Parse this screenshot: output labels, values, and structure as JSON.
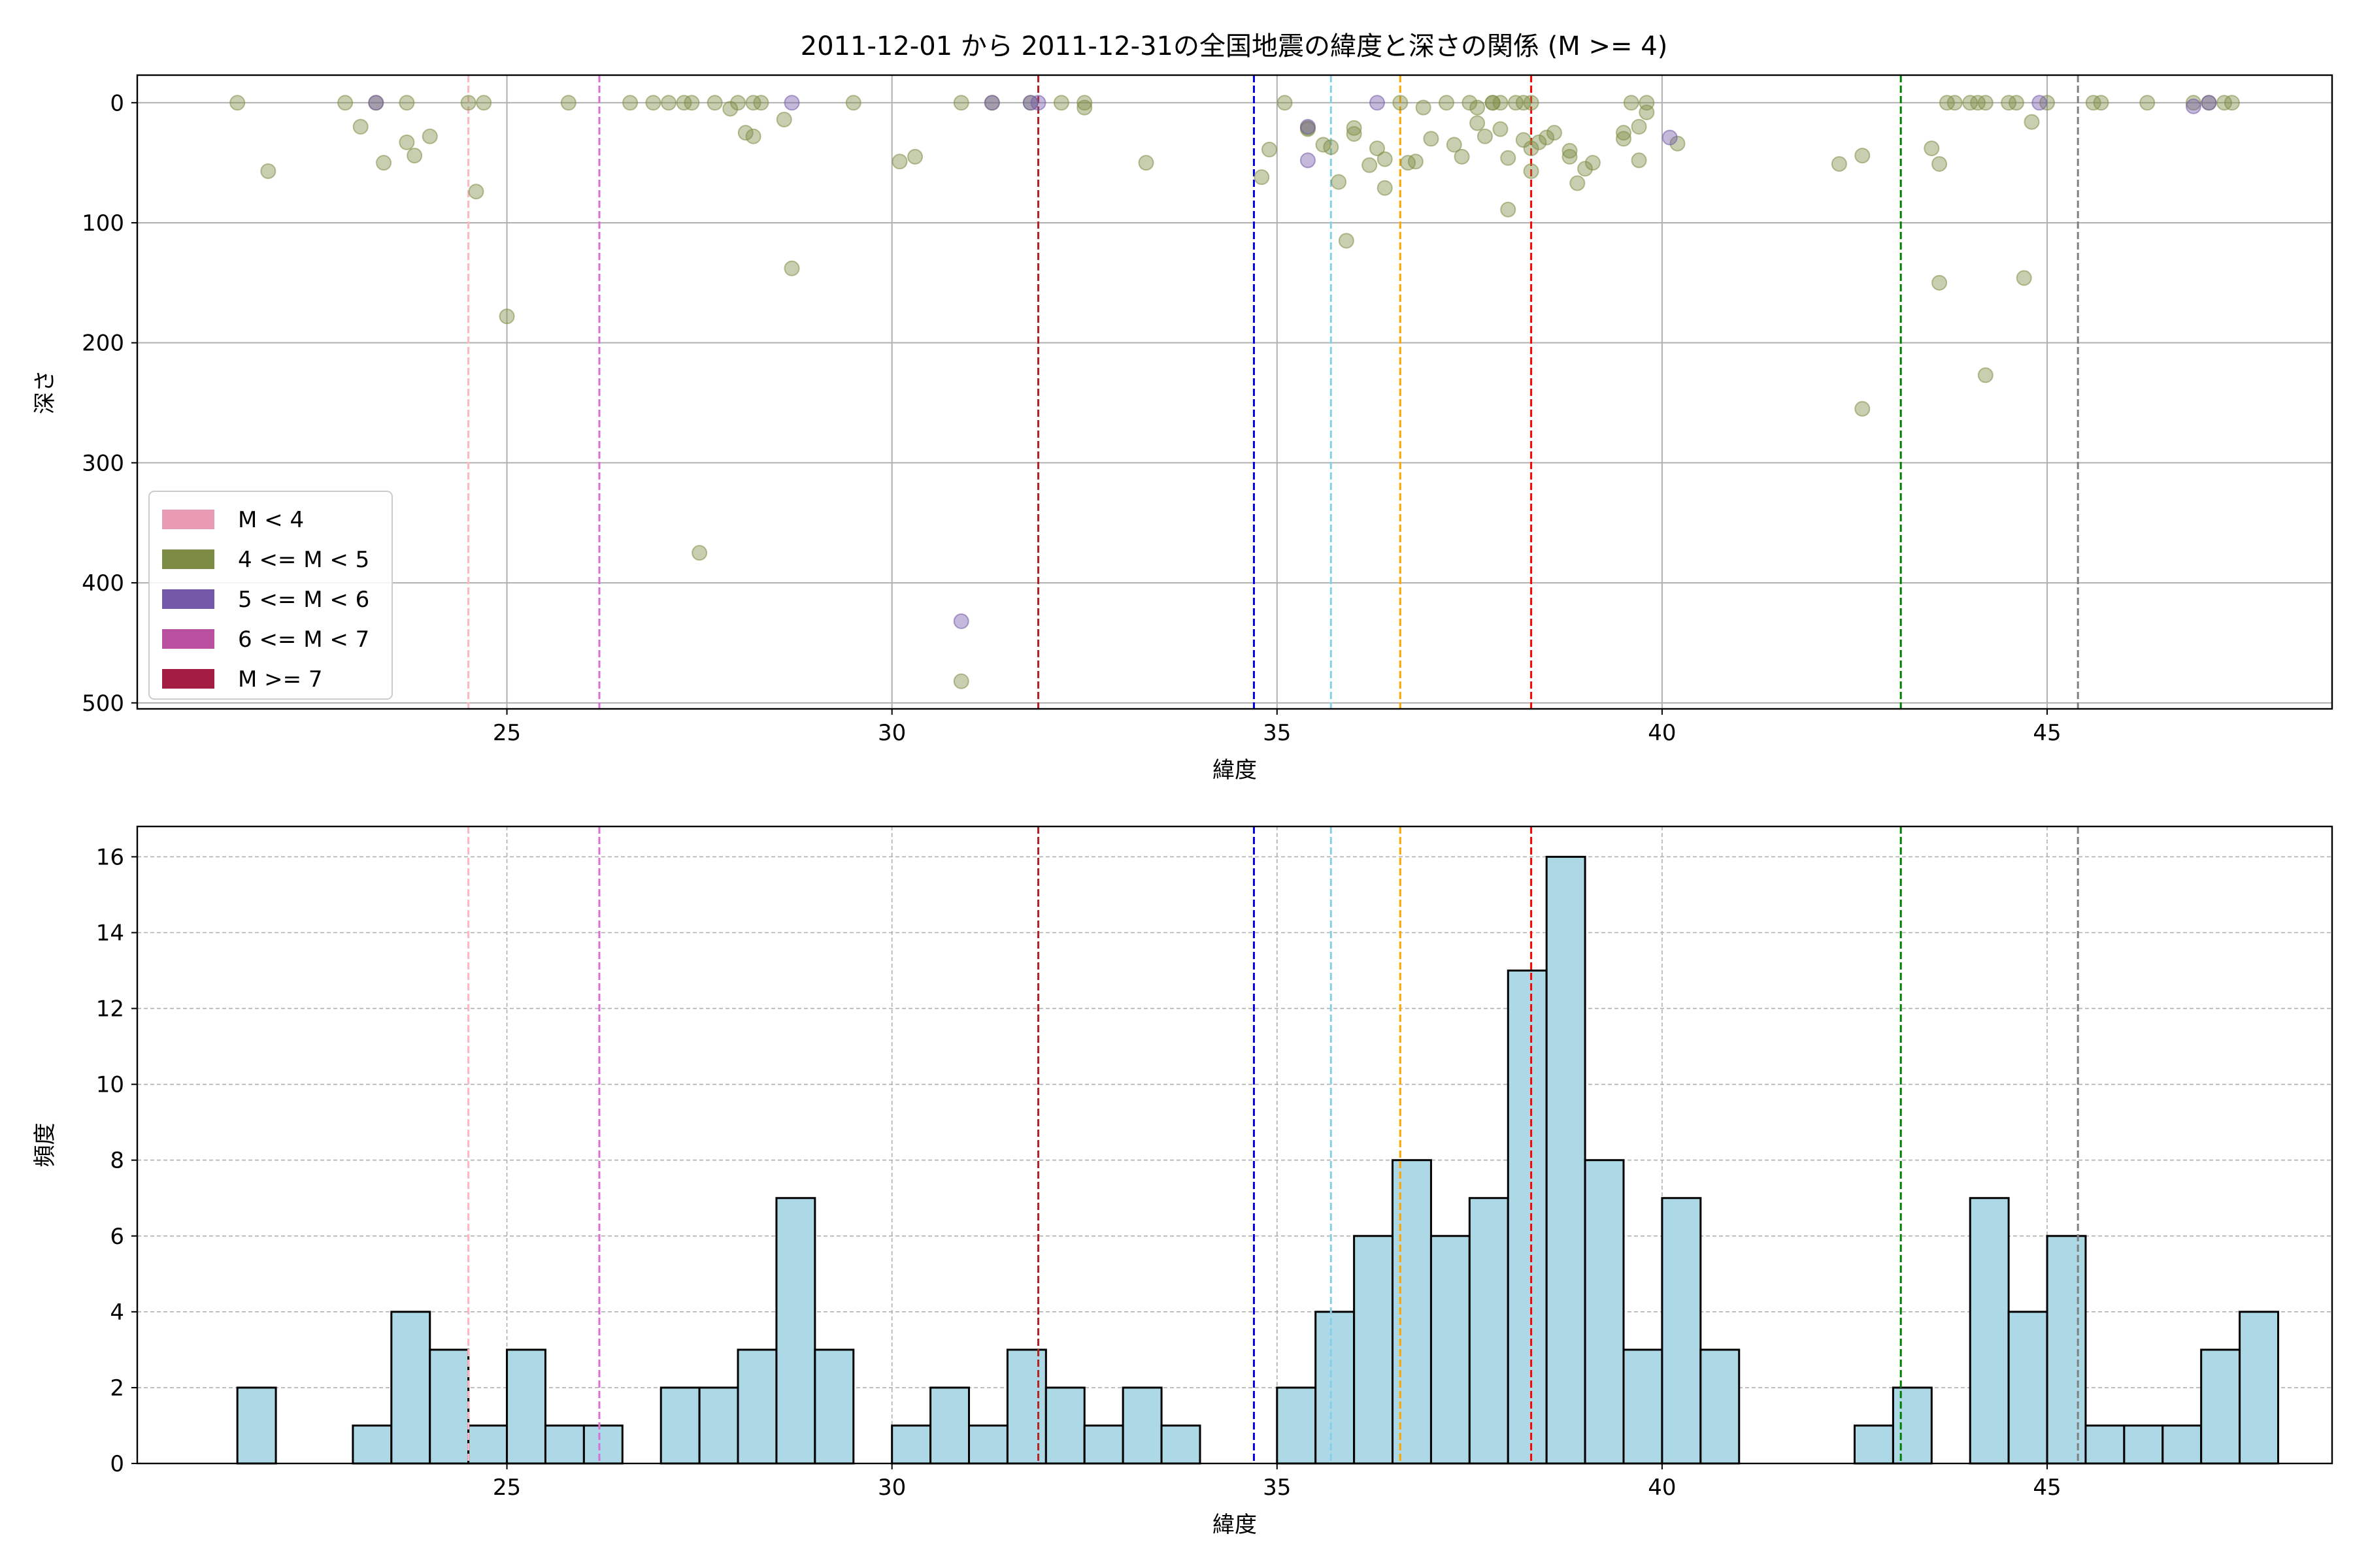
{
  "figure": {
    "title": "2011-12-01 から 2011-12-31の全国地震の緯度と深さの関係 (M >= 4)"
  },
  "chart_data": [
    {
      "type": "scatter",
      "xlabel": "緯度",
      "ylabel": "深さ",
      "xlim": [
        20.2,
        48.7
      ],
      "ylim": [
        505,
        -23
      ],
      "y_inverted": true,
      "xticks": [
        25,
        30,
        35,
        40,
        45
      ],
      "yticks": [
        0,
        100,
        200,
        300,
        400,
        500
      ],
      "grid": true,
      "legend_position": "lower-left",
      "legend": [
        {
          "label": "M < 4",
          "color": "#e89ab3"
        },
        {
          "label": "4 <= M < 5",
          "color": "#7d8c44"
        },
        {
          "label": "5 <= M < 6",
          "color": "#7358a8"
        },
        {
          "label": "6 <= M < 7",
          "color": "#b8509f"
        },
        {
          "label": "M >= 7",
          "color": "#a21c44"
        }
      ],
      "vlines": [
        {
          "x": 24.5,
          "color": "#ffb6c1"
        },
        {
          "x": 26.2,
          "color": "#da70d6"
        },
        {
          "x": 31.9,
          "color": "#b22222"
        },
        {
          "x": 34.7,
          "color": "#0000ee"
        },
        {
          "x": 35.7,
          "color": "#87ceeb"
        },
        {
          "x": 36.6,
          "color": "#ffa500"
        },
        {
          "x": 38.3,
          "color": "#ff0000"
        },
        {
          "x": 43.1,
          "color": "#008000"
        },
        {
          "x": 45.4,
          "color": "#808080"
        }
      ],
      "series": [
        {
          "name": "4 <= M < 5",
          "color": "#7d8c44",
          "points": [
            [
              21.5,
              0
            ],
            [
              21.9,
              57
            ],
            [
              22.9,
              0
            ],
            [
              23.1,
              20
            ],
            [
              23.3,
              0
            ],
            [
              23.4,
              50
            ],
            [
              23.7,
              33
            ],
            [
              23.7,
              0
            ],
            [
              23.8,
              44
            ],
            [
              24.0,
              28
            ],
            [
              24.5,
              0
            ],
            [
              24.6,
              74
            ],
            [
              24.7,
              0
            ],
            [
              25.0,
              178
            ],
            [
              25.8,
              0
            ],
            [
              26.6,
              0
            ],
            [
              26.9,
              0
            ],
            [
              27.1,
              0
            ],
            [
              27.3,
              0
            ],
            [
              27.4,
              0
            ],
            [
              27.5,
              375
            ],
            [
              27.7,
              0
            ],
            [
              27.9,
              5
            ],
            [
              28.0,
              0
            ],
            [
              28.1,
              25
            ],
            [
              28.2,
              28
            ],
            [
              28.2,
              0
            ],
            [
              28.3,
              0
            ],
            [
              28.6,
              14
            ],
            [
              28.7,
              138
            ],
            [
              29.5,
              0
            ],
            [
              30.1,
              49
            ],
            [
              30.3,
              45
            ],
            [
              30.9,
              0
            ],
            [
              30.9,
              482
            ],
            [
              31.3,
              0
            ],
            [
              31.8,
              0
            ],
            [
              32.2,
              0
            ],
            [
              32.5,
              0
            ],
            [
              32.5,
              4
            ],
            [
              33.3,
              50
            ],
            [
              34.8,
              62
            ],
            [
              34.9,
              39
            ],
            [
              35.1,
              0
            ],
            [
              35.4,
              21
            ],
            [
              35.4,
              22
            ],
            [
              35.6,
              35
            ],
            [
              35.7,
              37
            ],
            [
              35.8,
              66
            ],
            [
              35.9,
              115
            ],
            [
              36.0,
              26
            ],
            [
              36.0,
              21
            ],
            [
              36.2,
              52
            ],
            [
              36.3,
              38
            ],
            [
              36.4,
              47
            ],
            [
              36.4,
              71
            ],
            [
              36.6,
              0
            ],
            [
              36.7,
              50
            ],
            [
              36.8,
              49
            ],
            [
              36.9,
              4
            ],
            [
              37.0,
              30
            ],
            [
              37.2,
              0
            ],
            [
              37.3,
              35
            ],
            [
              37.4,
              45
            ],
            [
              37.5,
              0
            ],
            [
              37.6,
              17
            ],
            [
              37.6,
              4
            ],
            [
              37.7,
              28
            ],
            [
              37.8,
              0
            ],
            [
              37.8,
              0
            ],
            [
              37.9,
              22
            ],
            [
              37.9,
              0
            ],
            [
              38.0,
              46
            ],
            [
              38.1,
              0
            ],
            [
              38.0,
              89
            ],
            [
              38.2,
              0
            ],
            [
              38.3,
              57
            ],
            [
              38.2,
              31
            ],
            [
              38.3,
              0
            ],
            [
              38.3,
              38
            ],
            [
              38.4,
              33
            ],
            [
              38.5,
              29
            ],
            [
              38.6,
              25
            ],
            [
              38.8,
              45
            ],
            [
              38.8,
              40
            ],
            [
              38.9,
              67
            ],
            [
              39.0,
              55
            ],
            [
              39.1,
              50
            ],
            [
              39.5,
              25
            ],
            [
              39.5,
              30
            ],
            [
              39.6,
              0
            ],
            [
              39.8,
              0
            ],
            [
              39.7,
              48
            ],
            [
              39.7,
              20
            ],
            [
              39.8,
              8
            ],
            [
              40.2,
              34
            ],
            [
              42.3,
              51
            ],
            [
              42.6,
              44
            ],
            [
              42.6,
              255
            ],
            [
              43.5,
              38
            ],
            [
              43.6,
              150
            ],
            [
              43.6,
              51
            ],
            [
              43.7,
              0
            ],
            [
              43.8,
              0
            ],
            [
              44.0,
              0
            ],
            [
              44.1,
              0
            ],
            [
              44.2,
              0
            ],
            [
              44.2,
              227
            ],
            [
              44.5,
              0
            ],
            [
              44.6,
              0
            ],
            [
              44.7,
              146
            ],
            [
              44.8,
              16
            ],
            [
              45.0,
              0
            ],
            [
              45.6,
              0
            ],
            [
              45.7,
              0
            ],
            [
              46.3,
              0
            ],
            [
              46.9,
              0
            ],
            [
              47.1,
              0
            ],
            [
              47.3,
              0
            ],
            [
              47.4,
              0
            ]
          ]
        },
        {
          "name": "5 <= M < 6",
          "color": "#7358a8",
          "points": [
            [
              23.3,
              0
            ],
            [
              28.7,
              0
            ],
            [
              30.9,
              432
            ],
            [
              31.3,
              0
            ],
            [
              31.8,
              0
            ],
            [
              31.9,
              0
            ],
            [
              35.4,
              48
            ],
            [
              35.4,
              20
            ],
            [
              36.3,
              0
            ],
            [
              40.1,
              29
            ],
            [
              44.9,
              0
            ],
            [
              46.9,
              3
            ],
            [
              47.1,
              0
            ]
          ]
        }
      ]
    },
    {
      "type": "bar",
      "xlabel": "緯度",
      "ylabel": "頻度",
      "xlim": [
        20.2,
        48.7
      ],
      "ylim": [
        0,
        16.8
      ],
      "xticks": [
        25,
        30,
        35,
        40,
        45
      ],
      "yticks": [
        0,
        2,
        4,
        6,
        8,
        10,
        12,
        14,
        16
      ],
      "grid": true,
      "bar_color": "#add8e6",
      "bin_start": 21.5,
      "bin_width": 0.5,
      "values": [
        2,
        0,
        0,
        1,
        4,
        3,
        1,
        3,
        1,
        1,
        0,
        2,
        2,
        3,
        7,
        3,
        0,
        1,
        2,
        1,
        3,
        2,
        1,
        2,
        1,
        0,
        0,
        2,
        4,
        6,
        8,
        6,
        7,
        13,
        16,
        8,
        3,
        7,
        3,
        0,
        0,
        0,
        1,
        2,
        0,
        7,
        4,
        6,
        1,
        1,
        1,
        3,
        4
      ],
      "vlines": [
        {
          "x": 24.5,
          "color": "#ffb6c1"
        },
        {
          "x": 26.2,
          "color": "#da70d6"
        },
        {
          "x": 31.9,
          "color": "#b22222"
        },
        {
          "x": 34.7,
          "color": "#0000ee"
        },
        {
          "x": 35.7,
          "color": "#87ceeb"
        },
        {
          "x": 36.6,
          "color": "#ffa500"
        },
        {
          "x": 38.3,
          "color": "#ff0000"
        },
        {
          "x": 43.1,
          "color": "#008000"
        },
        {
          "x": 45.4,
          "color": "#808080"
        }
      ]
    }
  ]
}
